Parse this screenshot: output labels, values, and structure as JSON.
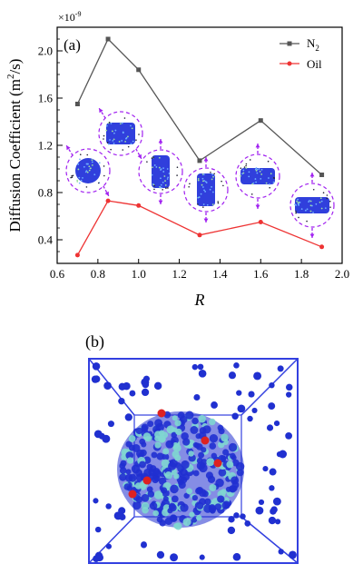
{
  "chart_data": {
    "type": "line",
    "panel_label": "(a)",
    "xlabel": "R",
    "ylabel": "Diffusion Coefficient (m²/s)",
    "ylabel_parts": [
      "Diffusion Coefficient (m",
      "2",
      "/s)"
    ],
    "y_multiplier": "×10",
    "y_multiplier_exp": "-9",
    "xlim": [
      0.6,
      2.0
    ],
    "ylim": [
      0.2,
      2.2
    ],
    "xticks": [
      "0.6",
      "0.8",
      "1.0",
      "1.2",
      "1.4",
      "1.6",
      "1.8",
      "2.0"
    ],
    "yticks": [
      "0.4",
      "0.8",
      "1.2",
      "1.6",
      "2.0"
    ],
    "grid": false,
    "legend_position": "top-right",
    "series": [
      {
        "name": "N₂",
        "legend_base": "N",
        "legend_sub": "2",
        "color": "#555555",
        "marker": "square",
        "x": [
          0.7,
          0.85,
          1.0,
          1.3,
          1.6,
          1.9
        ],
        "y": [
          1.55,
          2.1,
          1.84,
          1.07,
          1.41,
          0.95
        ]
      },
      {
        "name": "Oil",
        "legend_base": "Oil",
        "legend_sub": "",
        "color": "#ee3333",
        "marker": "circle",
        "x": [
          0.7,
          0.85,
          1.0,
          1.3,
          1.6,
          1.9
        ],
        "y": [
          0.27,
          0.73,
          0.69,
          0.44,
          0.55,
          0.34
        ]
      }
    ],
    "insets": [
      {
        "shape": "sphere",
        "arrows": "diagonal"
      },
      {
        "shape": "short-cylinder",
        "arrows": "diagonal"
      },
      {
        "shape": "tall-cylinder",
        "arrows": "vertical"
      },
      {
        "shape": "tall-cylinder",
        "arrows": "vertical"
      },
      {
        "shape": "flat-disc",
        "arrows": "vertical"
      },
      {
        "shape": "flat-disc",
        "arrows": "vertical"
      }
    ],
    "inset_color": "#a020f0",
    "mark_color": "#1a2ad8"
  },
  "panel_b": {
    "label": "(b)",
    "box_color": "#3340e0",
    "molecule_colors": {
      "n2": "#2030d0",
      "oil": "#7fd6d0",
      "highlight": "#dd2222"
    }
  }
}
